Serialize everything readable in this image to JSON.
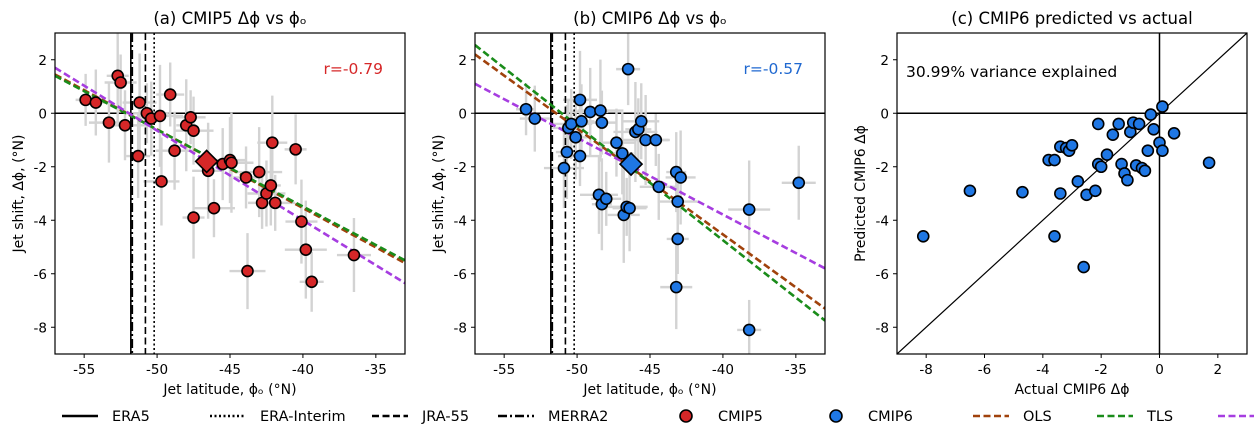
{
  "colors": {
    "cmip5": "#d62728",
    "cmip6": "#1f77e4",
    "ols": "#a0420c",
    "tls": "#1a8c1a",
    "bhm": "#a63de0",
    "errbar": "#d3d3d3",
    "r5": "#d62728",
    "r6": "#1f68d0"
  },
  "legend": [
    {
      "label": "ERA5",
      "kind": "line",
      "dash": "solid"
    },
    {
      "label": "ERA-Interim",
      "kind": "line",
      "dash": "dotted"
    },
    {
      "label": "JRA-55",
      "kind": "line",
      "dash": "dashed"
    },
    {
      "label": "MERRA2",
      "kind": "line",
      "dash": "dashdot"
    },
    {
      "label": "CMIP5",
      "kind": "marker",
      "color": "cmip5"
    },
    {
      "label": "CMIP6",
      "kind": "marker",
      "color": "cmip6"
    },
    {
      "label": "OLS",
      "kind": "line",
      "dash": "dashed",
      "color": "ols"
    },
    {
      "label": "TLS",
      "kind": "line",
      "dash": "dashed",
      "color": "tls"
    },
    {
      "label": "BHM",
      "kind": "line",
      "dash": "dashed",
      "color": "bhm"
    }
  ],
  "chart_data": [
    {
      "type": "scatter",
      "title": "(a) CMIP5 Δϕ vs ϕₒ",
      "xlabel": "Jet latitude, ϕₒ (°N)",
      "ylabel": "Jet shift, Δϕ, (°N)",
      "xlim": [
        -57,
        -33
      ],
      "ylim": [
        -9,
        3
      ],
      "xticks": [
        -55,
        -50,
        -45,
        -40,
        -35
      ],
      "yticks": [
        2,
        0,
        -2,
        -4,
        -6,
        -8
      ],
      "annotation": "r=-0.79",
      "annotation_color": "r5",
      "marker_color": "cmip5",
      "reanalysis_lines": {
        "ERA5": -51.8,
        "ERA-Interim": -50.2,
        "JRA-55": -50.8,
        "MERRA2": -51.8
      },
      "regression": {
        "OLS": [
          [
            -57,
            1.45
          ],
          [
            -33,
            -5.6
          ]
        ],
        "TLS": [
          [
            -57,
            1.4
          ],
          [
            -33,
            -5.5
          ]
        ],
        "BHM": [
          [
            -57,
            1.7
          ],
          [
            -33,
            -6.35
          ]
        ]
      },
      "mean_point": [
        -46.6,
        -1.8
      ],
      "points": [
        [
          -54.9,
          0.5
        ],
        [
          -54.2,
          0.4
        ],
        [
          -53.3,
          -0.35
        ],
        [
          -52.7,
          1.4
        ],
        [
          -52.5,
          1.15
        ],
        [
          -52.2,
          -0.45
        ],
        [
          -51.3,
          -1.6
        ],
        [
          -51.2,
          0.4
        ],
        [
          -50.7,
          0.0
        ],
        [
          -50.4,
          -0.2
        ],
        [
          -49.7,
          -2.55
        ],
        [
          -49.8,
          -0.1
        ],
        [
          -49.1,
          0.7
        ],
        [
          -48.8,
          -1.4
        ],
        [
          -48.0,
          -0.45
        ],
        [
          -47.7,
          -0.15
        ],
        [
          -47.5,
          -0.65
        ],
        [
          -47.5,
          -3.9
        ],
        [
          -46.5,
          -2.15
        ],
        [
          -46.1,
          -3.55
        ],
        [
          -45.5,
          -1.9
        ],
        [
          -45.0,
          -1.75
        ],
        [
          -44.9,
          -1.85
        ],
        [
          -43.9,
          -2.4
        ],
        [
          -43.8,
          -5.9
        ],
        [
          -43.0,
          -2.2
        ],
        [
          -42.8,
          -3.35
        ],
        [
          -42.5,
          -3.0
        ],
        [
          -42.2,
          -2.7
        ],
        [
          -42.1,
          -1.1
        ],
        [
          -41.9,
          -3.35
        ],
        [
          -40.5,
          -1.35
        ],
        [
          -40.1,
          -4.05
        ],
        [
          -39.8,
          -5.1
        ],
        [
          -39.4,
          -6.3
        ],
        [
          -36.5,
          -5.3
        ]
      ]
    },
    {
      "type": "scatter",
      "title": "(b) CMIP6 Δϕ vs ϕₒ",
      "xlabel": "Jet latitude, ϕₒ (°N)",
      "ylabel": "Jet shift, Δϕ, (°N)",
      "xlim": [
        -57,
        -33
      ],
      "ylim": [
        -9,
        3
      ],
      "xticks": [
        -55,
        -50,
        -45,
        -40,
        -35
      ],
      "yticks": [
        2,
        0,
        -2,
        -4,
        -6,
        -8
      ],
      "annotation": "r=-0.57",
      "annotation_color": "r6",
      "marker_color": "cmip6",
      "reanalysis_lines": {
        "ERA5": -51.8,
        "ERA-Interim": -50.2,
        "JRA-55": -50.8,
        "MERRA2": -51.8
      },
      "regression": {
        "OLS": [
          [
            -57,
            2.2
          ],
          [
            -33,
            -7.3
          ]
        ],
        "TLS": [
          [
            -57,
            2.55
          ],
          [
            -33,
            -7.75
          ]
        ],
        "BHM": [
          [
            -57,
            1.1
          ],
          [
            -33,
            -5.8
          ]
        ]
      },
      "mean_point": [
        -46.3,
        -1.9
      ],
      "points": [
        [
          -53.5,
          0.15
        ],
        [
          -52.9,
          -0.2
        ],
        [
          -50.9,
          -2.05
        ],
        [
          -50.7,
          -1.45
        ],
        [
          -50.6,
          -0.55
        ],
        [
          -50.4,
          -0.4
        ],
        [
          -50.1,
          -0.9
        ],
        [
          -49.8,
          0.5
        ],
        [
          -49.8,
          -1.6
        ],
        [
          -49.7,
          -0.3
        ],
        [
          -49.1,
          0.05
        ],
        [
          -48.4,
          0.1
        ],
        [
          -48.3,
          -0.35
        ],
        [
          -48.5,
          -3.05
        ],
        [
          -48.3,
          -3.4
        ],
        [
          -48.0,
          -3.2
        ],
        [
          -47.3,
          -1.1
        ],
        [
          -46.9,
          -1.5
        ],
        [
          -46.8,
          -3.8
        ],
        [
          -46.6,
          -3.5
        ],
        [
          -46.5,
          1.65
        ],
        [
          -46.4,
          -3.55
        ],
        [
          -46.0,
          -0.7
        ],
        [
          -45.8,
          -0.6
        ],
        [
          -45.6,
          -0.3
        ],
        [
          -45.3,
          -1.0
        ],
        [
          -44.6,
          -1.0
        ],
        [
          -44.4,
          -2.75
        ],
        [
          -43.2,
          -2.2
        ],
        [
          -42.9,
          -2.4
        ],
        [
          -43.1,
          -3.3
        ],
        [
          -43.1,
          -4.7
        ],
        [
          -43.2,
          -6.5
        ],
        [
          -38.2,
          -3.6
        ],
        [
          -38.2,
          -8.1
        ],
        [
          -34.8,
          -2.6
        ]
      ]
    },
    {
      "type": "scatter",
      "title": "(c) CMIP6 predicted vs actual",
      "xlabel": "Actual CMIP6 Δϕ",
      "ylabel": "Predicted CMIP6 Δϕ",
      "xlim": [
        -9,
        3
      ],
      "ylim": [
        -9,
        3
      ],
      "xticks": [
        -8,
        -6,
        -4,
        -2,
        0,
        2
      ],
      "yticks": [
        2,
        0,
        -2,
        -4,
        -6,
        -8
      ],
      "annotation": "30.99% variance explained",
      "marker_color": "cmip6",
      "points": [
        [
          -8.1,
          -4.6
        ],
        [
          -6.5,
          -2.9
        ],
        [
          -4.7,
          -2.95
        ],
        [
          -3.8,
          -1.75
        ],
        [
          -3.6,
          -1.75
        ],
        [
          -3.6,
          -4.6
        ],
        [
          -3.4,
          -1.25
        ],
        [
          -3.4,
          -3.0
        ],
        [
          -3.2,
          -1.3
        ],
        [
          -3.1,
          -1.4
        ],
        [
          -3.0,
          -1.2
        ],
        [
          -2.8,
          -2.55
        ],
        [
          -2.6,
          -5.75
        ],
        [
          -2.5,
          -3.05
        ],
        [
          -2.2,
          -2.9
        ],
        [
          -2.1,
          -0.4
        ],
        [
          -2.1,
          -1.9
        ],
        [
          -2.0,
          -2.0
        ],
        [
          -1.8,
          -1.55
        ],
        [
          -1.6,
          -0.8
        ],
        [
          -1.4,
          -0.4
        ],
        [
          -1.3,
          -1.9
        ],
        [
          -1.2,
          -2.25
        ],
        [
          -1.1,
          -2.5
        ],
        [
          -1.0,
          -0.7
        ],
        [
          -0.9,
          -0.35
        ],
        [
          -0.8,
          -1.95
        ],
        [
          -0.7,
          -0.4
        ],
        [
          -0.6,
          -2.05
        ],
        [
          -0.5,
          -2.15
        ],
        [
          -0.4,
          -1.4
        ],
        [
          -0.3,
          -0.05
        ],
        [
          -0.2,
          -0.6
        ],
        [
          0.0,
          -1.1
        ],
        [
          0.1,
          -1.4
        ],
        [
          0.1,
          0.25
        ],
        [
          0.5,
          -0.75
        ],
        [
          1.7,
          -1.85
        ]
      ]
    }
  ]
}
